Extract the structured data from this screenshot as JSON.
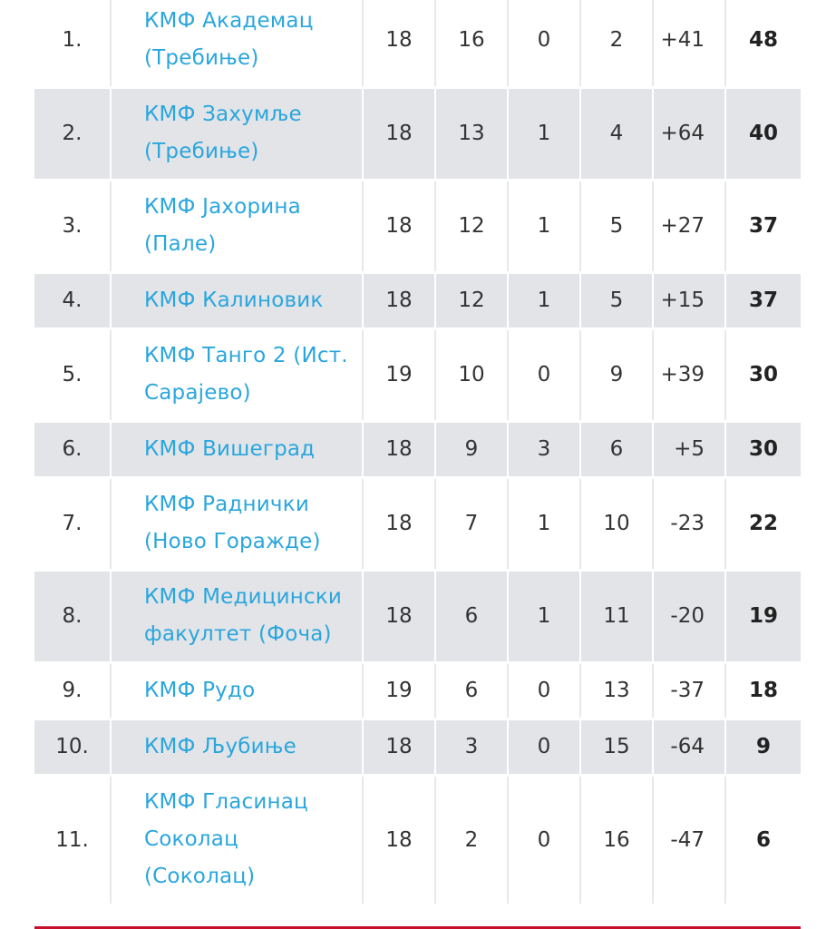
{
  "standings": {
    "rows": [
      {
        "rank": "1.",
        "team": "КМФ Академац (Требиње)",
        "played": "18",
        "won": "16",
        "drawn": "0",
        "lost": "2",
        "goal_diff": "+41",
        "points": "48"
      },
      {
        "rank": "2.",
        "team": "КМФ Захумље (Требиње)",
        "played": "18",
        "won": "13",
        "drawn": "1",
        "lost": "4",
        "goal_diff": "+64",
        "points": "40"
      },
      {
        "rank": "3.",
        "team": "КМФ Јахорина (Пале)",
        "played": "18",
        "won": "12",
        "drawn": "1",
        "lost": "5",
        "goal_diff": "+27",
        "points": "37"
      },
      {
        "rank": "4.",
        "team": "КМФ Калиновик",
        "played": "18",
        "won": "12",
        "drawn": "1",
        "lost": "5",
        "goal_diff": "+15",
        "points": "37"
      },
      {
        "rank": "5.",
        "team": "КМФ Танго 2 (Ист. Сарајево)",
        "played": "19",
        "won": "10",
        "drawn": "0",
        "lost": "9",
        "goal_diff": "+39",
        "points": "30"
      },
      {
        "rank": "6.",
        "team": "КМФ Вишеград",
        "played": "18",
        "won": "9",
        "drawn": "3",
        "lost": "6",
        "goal_diff": "+5",
        "points": "30"
      },
      {
        "rank": "7.",
        "team": "КМФ Раднички (Ново Горажде)",
        "played": "18",
        "won": "7",
        "drawn": "1",
        "lost": "10",
        "goal_diff": "-23",
        "points": "22"
      },
      {
        "rank": "8.",
        "team": "КМФ Медицински факултет (Фоча)",
        "played": "18",
        "won": "6",
        "drawn": "1",
        "lost": "11",
        "goal_diff": "-20",
        "points": "19"
      },
      {
        "rank": "9.",
        "team": "КМФ Рудо",
        "played": "19",
        "won": "6",
        "drawn": "0",
        "lost": "13",
        "goal_diff": "-37",
        "points": "18"
      },
      {
        "rank": "10.",
        "team": "КМФ Љубиње",
        "played": "18",
        "won": "3",
        "drawn": "0",
        "lost": "15",
        "goal_diff": "-64",
        "points": "9"
      },
      {
        "rank": "11.",
        "team": "КМФ Гласинац Соколац (Соколац)",
        "played": "18",
        "won": "2",
        "drawn": "0",
        "lost": "16",
        "goal_diff": "-47",
        "points": "6"
      }
    ]
  },
  "colors": {
    "team_link": "#2aa6dd",
    "row_stripe": "#e2e4e8",
    "accent_rule": "#c8102e"
  }
}
